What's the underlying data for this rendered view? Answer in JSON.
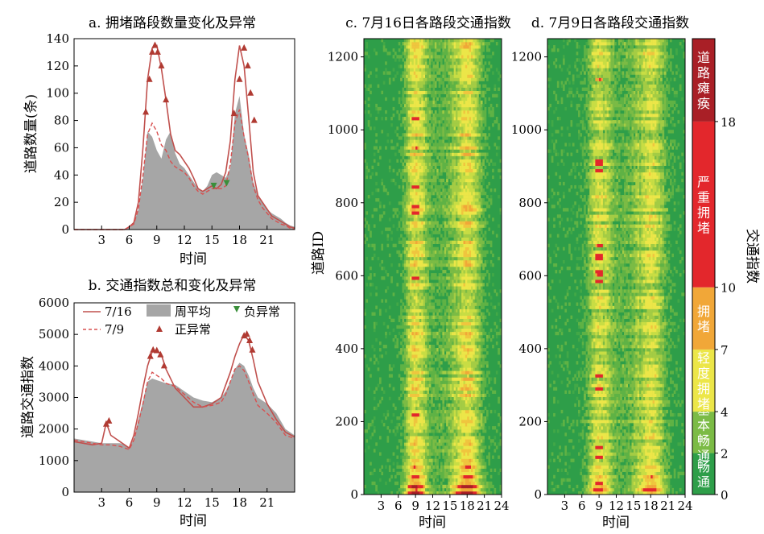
{
  "panels": {
    "a": {
      "title": "a. 拥堵路段数量变化及异常",
      "ylabel": "道路数量(条)",
      "xlabel": "时间"
    },
    "b": {
      "title": "b. 交通指数总和变化及异常",
      "ylabel": "道路交通指数",
      "xlabel": "时间"
    },
    "c": {
      "title": "c. 7月16日各路段交通指数",
      "ylabel": "道路ID",
      "xlabel": "时间"
    },
    "d": {
      "title": "d. 7月9日各路段交通指数",
      "xlabel": "时间"
    }
  },
  "legend": {
    "s716": "7/16",
    "s79": "7/9",
    "week": "周平均",
    "neg": "负异常",
    "pos": "正异常"
  },
  "colorbar": {
    "title": "交通指数",
    "ticks": [
      "0",
      "2",
      "4",
      "7",
      "10",
      "18"
    ],
    "bands": [
      {
        "label": "畅通",
        "color": "#2e9e49",
        "from": 0,
        "to": 2
      },
      {
        "label": "基本畅通",
        "color": "#7bbb45",
        "from": 2,
        "to": 4
      },
      {
        "label": "轻度拥堵",
        "color": "#ece648",
        "from": 4,
        "to": 7
      },
      {
        "label": "拥堵",
        "color": "#f1a738",
        "from": 7,
        "to": 10
      },
      {
        "label": "严重拥堵",
        "color": "#e3272c",
        "from": 10,
        "to": 18
      },
      {
        "label": "道路瘫痪",
        "color": "#a91f26",
        "from": 18,
        "to": 22
      }
    ]
  },
  "colors": {
    "s716": "#c0504d",
    "s79": "#d85050",
    "week": "#a6a6a6",
    "pos": "#b03a32",
    "neg": "#3a8f3a"
  },
  "chart_data": [
    {
      "type": "area",
      "id": "a",
      "xlabel": "时间",
      "ylabel": "道路数量(条)",
      "xlim": [
        0,
        24
      ],
      "ylim": [
        0,
        140
      ],
      "xticks": [
        3,
        6,
        9,
        12,
        15,
        18,
        21
      ],
      "yticks": [
        0,
        20,
        40,
        60,
        80,
        100,
        120,
        140
      ],
      "series": [
        {
          "name": "周平均",
          "type": "area",
          "x": [
            0,
            5.5,
            6,
            6.5,
            7,
            7.5,
            8,
            8.5,
            9,
            9.5,
            10,
            10.5,
            11,
            11.5,
            12,
            12.5,
            13,
            13.5,
            14,
            14.5,
            15,
            15.5,
            16,
            16.5,
            17,
            17.5,
            18,
            18.5,
            19,
            19.5,
            20,
            20.5,
            21,
            21.5,
            22,
            22.5,
            23,
            23.5,
            24
          ],
          "y": [
            0,
            0,
            2,
            5,
            15,
            38,
            72,
            68,
            58,
            52,
            66,
            72,
            56,
            48,
            45,
            40,
            35,
            30,
            28,
            32,
            40,
            42,
            40,
            38,
            45,
            85,
            98,
            70,
            55,
            35,
            25,
            20,
            15,
            12,
            10,
            8,
            5,
            3,
            2
          ]
        },
        {
          "name": "7/16",
          "type": "line",
          "x": [
            0,
            5.5,
            6,
            6.5,
            7,
            7.5,
            8,
            8.5,
            9,
            9.5,
            10,
            10.5,
            11,
            11.5,
            12,
            12.5,
            13,
            13.5,
            14,
            14.5,
            15,
            15.5,
            16,
            16.5,
            17,
            17.5,
            18,
            18.5,
            19,
            19.5,
            20,
            20.5,
            21,
            21.5,
            22,
            22.5,
            23,
            23.5,
            24
          ],
          "y": [
            0,
            0,
            2,
            5,
            20,
            60,
            110,
            133,
            135,
            118,
            95,
            70,
            58,
            55,
            50,
            45,
            38,
            30,
            28,
            30,
            32,
            30,
            33,
            42,
            65,
            110,
            135,
            120,
            82,
            42,
            25,
            20,
            15,
            10,
            8,
            6,
            4,
            2,
            1
          ]
        },
        {
          "name": "7/9",
          "type": "line",
          "x": [
            0,
            5.5,
            6,
            6.5,
            7,
            7.5,
            8,
            8.5,
            9,
            9.5,
            10,
            10.5,
            11,
            11.5,
            12,
            12.5,
            13,
            13.5,
            14,
            14.5,
            15,
            15.5,
            16,
            16.5,
            17,
            17.5,
            18,
            18.5,
            19,
            19.5,
            20,
            20.5,
            21,
            21.5,
            22,
            22.5,
            23,
            23.5,
            24
          ],
          "y": [
            0,
            0,
            2,
            4,
            15,
            40,
            70,
            78,
            72,
            62,
            58,
            50,
            46,
            44,
            42,
            38,
            32,
            28,
            26,
            28,
            30,
            30,
            30,
            32,
            48,
            78,
            88,
            68,
            52,
            32,
            22,
            16,
            12,
            8,
            6,
            4,
            3,
            1,
            0
          ]
        }
      ],
      "positive_anomalies": [
        [
          7.8,
          86
        ],
        [
          8.2,
          110
        ],
        [
          8.5,
          130
        ],
        [
          8.8,
          135
        ],
        [
          9.1,
          130
        ],
        [
          9.5,
          120
        ],
        [
          10.0,
          95
        ],
        [
          17.4,
          85
        ],
        [
          18.0,
          110
        ],
        [
          18.5,
          133
        ],
        [
          18.9,
          120
        ],
        [
          19.2,
          100
        ],
        [
          19.6,
          80
        ]
      ],
      "negative_anomalies": [
        [
          15.2,
          32
        ],
        [
          16.6,
          34
        ]
      ]
    },
    {
      "type": "area",
      "id": "b",
      "xlabel": "时间",
      "ylabel": "道路交通指数",
      "xlim": [
        0,
        24
      ],
      "ylim": [
        0,
        6000
      ],
      "xticks": [
        3,
        6,
        9,
        12,
        15,
        18,
        21
      ],
      "yticks": [
        0,
        1000,
        2000,
        3000,
        4000,
        5000,
        6000
      ],
      "series": [
        {
          "name": "周平均",
          "type": "area",
          "x": [
            0,
            1,
            2,
            3,
            4,
            5,
            5.5,
            6,
            6.5,
            7,
            7.5,
            8,
            8.5,
            9,
            9.5,
            10,
            11,
            12,
            13,
            14,
            15,
            16,
            16.5,
            17,
            17.5,
            18,
            18.5,
            19,
            19.5,
            20,
            21,
            22,
            23,
            24
          ],
          "y": [
            1700,
            1650,
            1600,
            1550,
            1550,
            1550,
            1500,
            1400,
            1700,
            2300,
            2900,
            3500,
            3600,
            3550,
            3500,
            3450,
            3400,
            3200,
            3000,
            2900,
            2850,
            3000,
            3200,
            3500,
            3900,
            4100,
            4000,
            3700,
            3300,
            3000,
            2800,
            2500,
            2000,
            1800
          ]
        },
        {
          "name": "7/16",
          "type": "line",
          "x": [
            0,
            1,
            2,
            3,
            3.5,
            4,
            4.5,
            5,
            5.5,
            6,
            6.5,
            7,
            7.5,
            8,
            8.5,
            9,
            9.5,
            10,
            11,
            12,
            13,
            14,
            15,
            16,
            16.5,
            17,
            17.5,
            18,
            18.5,
            19,
            19.5,
            20,
            21,
            22,
            23,
            24
          ],
          "y": [
            1600,
            1550,
            1500,
            1550,
            2200,
            1800,
            1700,
            1600,
            1500,
            1400,
            1800,
            2500,
            3300,
            4000,
            4450,
            4500,
            4350,
            3900,
            3300,
            3000,
            2700,
            2700,
            2800,
            3000,
            3400,
            3800,
            4300,
            4700,
            5000,
            4800,
            4200,
            3500,
            2800,
            2300,
            1900,
            1750
          ]
        },
        {
          "name": "7/9",
          "type": "line",
          "x": [
            0,
            1,
            2,
            3,
            4,
            5,
            5.5,
            6,
            6.5,
            7,
            7.5,
            8,
            8.5,
            9,
            9.5,
            10,
            11,
            12,
            13,
            14,
            15,
            16,
            16.5,
            17,
            17.5,
            18,
            18.5,
            19,
            19.5,
            20,
            21,
            22,
            23,
            24
          ],
          "y": [
            1650,
            1600,
            1550,
            1500,
            1500,
            1450,
            1400,
            1350,
            1650,
            2200,
            2800,
            3500,
            3800,
            3700,
            3600,
            3450,
            3350,
            3100,
            2850,
            2700,
            2750,
            2850,
            3100,
            3500,
            3900,
            4000,
            3850,
            3500,
            3100,
            2750,
            2500,
            2200,
            1800,
            1700
          ]
        }
      ],
      "positive_anomalies": [
        [
          3.5,
          2150
        ],
        [
          3.8,
          2250
        ],
        [
          8.3,
          4300
        ],
        [
          8.6,
          4500
        ],
        [
          9.0,
          4480
        ],
        [
          9.4,
          4350
        ],
        [
          9.8,
          4000
        ],
        [
          18.5,
          4950
        ],
        [
          18.8,
          5000
        ],
        [
          19.1,
          4800
        ],
        [
          19.4,
          4500
        ]
      ],
      "negative_anomalies": []
    },
    {
      "type": "heatmap",
      "id": "c",
      "xlabel": "时间",
      "ylabel": "道路ID",
      "xlim": [
        0,
        24
      ],
      "ylim": [
        0,
        1250
      ],
      "xticks": [
        3,
        6,
        9,
        12,
        15,
        18,
        21,
        24
      ],
      "yticks": [
        0,
        200,
        400,
        600,
        800,
        1000,
        1200
      ],
      "peaks": [
        {
          "center": 9,
          "width": 1.6,
          "strength": 1.0
        },
        {
          "center": 18,
          "width": 2.2,
          "strength": 1.0
        }
      ]
    },
    {
      "type": "heatmap",
      "id": "d",
      "xlabel": "时间",
      "xlim": [
        0,
        24
      ],
      "ylim": [
        0,
        1250
      ],
      "xticks": [
        3,
        6,
        9,
        12,
        15,
        18,
        21,
        24
      ],
      "yticks": [
        0,
        200,
        400,
        600,
        800,
        1000,
        1200
      ],
      "peaks": [
        {
          "center": 9,
          "width": 1.8,
          "strength": 0.75
        },
        {
          "center": 18,
          "width": 2.3,
          "strength": 0.8
        }
      ]
    }
  ]
}
